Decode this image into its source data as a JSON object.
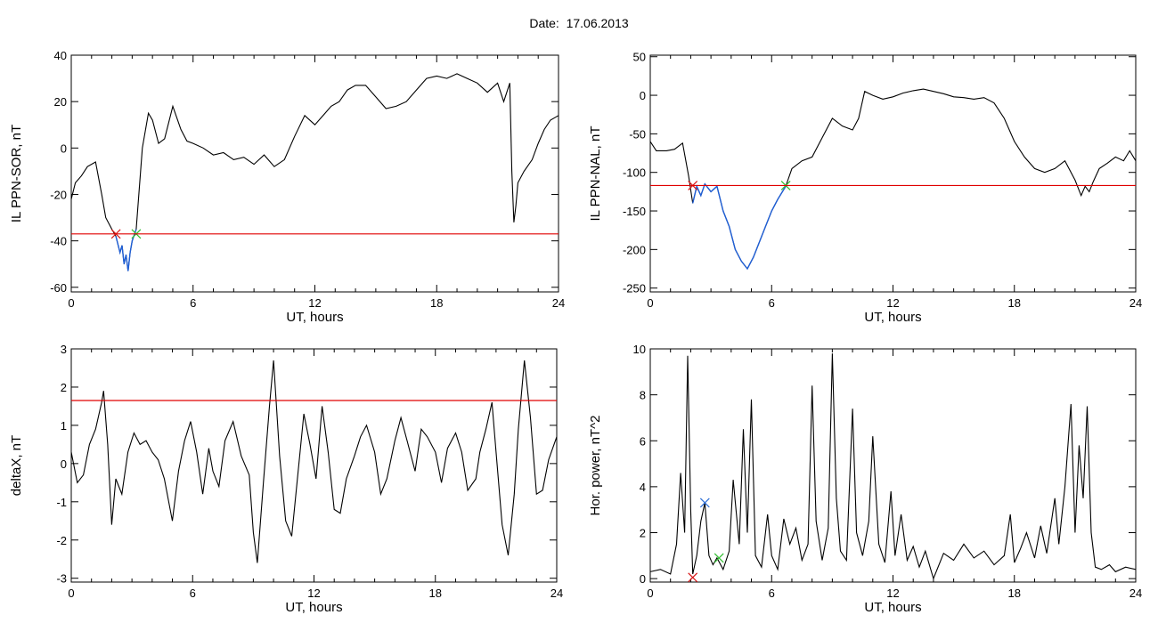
{
  "page": {
    "date_label": "Date:",
    "date_value": "17.06.2013"
  },
  "colors": {
    "line": "#000000",
    "highlight": "#1f5fd6",
    "threshold": "#e00000",
    "marker_red": "#d81818",
    "marker_green": "#2ebd2e",
    "marker_blue": "#2e6fd6"
  },
  "chart_data": [
    {
      "id": "sor",
      "type": "line",
      "title": "",
      "xlabel": "UT, hours",
      "ylabel": "IL PPN-SOR, nT",
      "xlim": [
        0,
        24
      ],
      "ylim": [
        -62,
        40
      ],
      "xticks": [
        0,
        6,
        12,
        18,
        24
      ],
      "xticklabels": [
        "0",
        "6",
        "12",
        "18",
        "24"
      ],
      "yticks": [
        -60,
        -40,
        -20,
        0,
        20,
        40
      ],
      "yticklabels": [
        "-60",
        "-40",
        "-20",
        "0",
        "20",
        "40"
      ],
      "threshold": -37,
      "highlight_range": [
        2.2,
        3.2
      ],
      "series": [
        {
          "x": [
            0,
            0.2,
            0.5,
            0.8,
            1.2,
            1.5,
            1.7,
            2.0,
            2.2,
            2.4,
            2.5,
            2.6,
            2.7,
            2.8,
            2.9,
            3.0,
            3.2,
            3.5,
            3.8,
            4.0,
            4.3,
            4.6,
            5.0,
            5.4,
            5.7,
            6.0,
            6.5,
            7.0,
            7.5,
            8.0,
            8.5,
            9.0,
            9.5,
            10.0,
            10.5,
            11.0,
            11.5,
            12.0,
            12.5,
            12.8,
            13.2,
            13.6,
            14.0,
            14.5,
            15.0,
            15.5,
            16.0,
            16.5,
            17.0,
            17.5,
            18.0,
            18.5,
            19.0,
            19.5,
            20.0,
            20.5,
            21.0,
            21.3,
            21.6,
            21.7,
            21.8,
            21.9,
            22.0,
            22.3,
            22.7,
            23.0,
            23.3,
            23.6,
            24.0
          ],
          "y": [
            -22,
            -15,
            -12,
            -8,
            -6,
            -20,
            -30,
            -35,
            -38,
            -45,
            -42,
            -50,
            -46,
            -53,
            -45,
            -40,
            -35,
            0,
            15,
            12,
            2,
            4,
            18,
            8,
            3,
            2,
            0,
            -3,
            -2,
            -5,
            -4,
            -7,
            -3,
            -8,
            -5,
            5,
            14,
            10,
            15,
            18,
            20,
            25,
            27,
            27,
            22,
            17,
            18,
            20,
            25,
            30,
            31,
            30,
            32,
            30,
            28,
            24,
            28,
            20,
            28,
            -10,
            -32,
            -25,
            -15,
            -10,
            -5,
            2,
            8,
            12,
            14
          ]
        }
      ]
    },
    {
      "id": "nal",
      "type": "line",
      "title": "",
      "xlabel": "UT, hours",
      "ylabel": "IL PPN-NAL, nT",
      "xlim": [
        0,
        24
      ],
      "ylim": [
        -255,
        52
      ],
      "xticks": [
        0,
        6,
        12,
        18,
        24
      ],
      "xticklabels": [
        "0",
        "6",
        "12",
        "18",
        "24"
      ],
      "yticks": [
        -250,
        -200,
        -150,
        -100,
        -50,
        0,
        50
      ],
      "yticklabels": [
        "-250",
        "-200",
        "-150",
        "-100",
        "-50",
        "0",
        "50"
      ],
      "threshold": -117,
      "highlight_range": [
        2.1,
        6.7
      ],
      "series": [
        {
          "x": [
            0,
            0.3,
            0.8,
            1.2,
            1.6,
            1.9,
            2.1,
            2.3,
            2.5,
            2.7,
            3.0,
            3.3,
            3.6,
            3.9,
            4.2,
            4.5,
            4.8,
            5.1,
            5.4,
            5.7,
            6.0,
            6.3,
            6.7,
            7.0,
            7.5,
            8.0,
            8.5,
            9.0,
            9.5,
            10.0,
            10.3,
            10.6,
            11.0,
            11.5,
            12.0,
            12.5,
            13.0,
            13.5,
            14.0,
            14.5,
            15.0,
            15.5,
            16.0,
            16.5,
            17.0,
            17.5,
            18.0,
            18.5,
            19.0,
            19.5,
            20.0,
            20.5,
            21.0,
            21.3,
            21.5,
            21.7,
            21.9,
            22.2,
            22.6,
            23.0,
            23.4,
            23.7,
            24.0
          ],
          "y": [
            -60,
            -72,
            -72,
            -70,
            -62,
            -105,
            -140,
            -118,
            -130,
            -115,
            -125,
            -118,
            -150,
            -170,
            -200,
            -215,
            -225,
            -210,
            -190,
            -170,
            -150,
            -135,
            -118,
            -95,
            -85,
            -80,
            -55,
            -30,
            -40,
            -45,
            -30,
            5,
            0,
            -5,
            -2,
            3,
            6,
            8,
            5,
            2,
            -2,
            -3,
            -5,
            -3,
            -10,
            -30,
            -60,
            -80,
            -95,
            -100,
            -95,
            -85,
            -110,
            -130,
            -118,
            -125,
            -112,
            -95,
            -88,
            -80,
            -85,
            -72,
            -85
          ]
        }
      ]
    },
    {
      "id": "deltax",
      "type": "line",
      "title": "",
      "xlabel": "UT, hours",
      "ylabel": "deltaX, nT",
      "xlim": [
        0,
        24
      ],
      "ylim": [
        -3.1,
        3
      ],
      "xticks": [
        0,
        6,
        12,
        18,
        24
      ],
      "xticklabels": [
        "0",
        "6",
        "12",
        "18",
        "24"
      ],
      "yticks": [
        -3,
        -2,
        -1,
        0,
        1,
        2,
        3
      ],
      "yticklabels": [
        "-3",
        "-2",
        "-1",
        "0",
        "1",
        "2",
        "3"
      ],
      "threshold": 1.65,
      "series": [
        {
          "x": [
            0,
            0.3,
            0.6,
            0.9,
            1.2,
            1.5,
            1.6,
            1.8,
            2.0,
            2.2,
            2.5,
            2.8,
            3.1,
            3.4,
            3.7,
            4.0,
            4.3,
            4.6,
            5.0,
            5.3,
            5.6,
            5.9,
            6.2,
            6.5,
            6.8,
            7.0,
            7.3,
            7.6,
            8.0,
            8.4,
            8.8,
            9.0,
            9.2,
            9.5,
            9.8,
            10.0,
            10.3,
            10.6,
            10.9,
            11.2,
            11.5,
            11.8,
            12.1,
            12.4,
            12.7,
            13.0,
            13.3,
            13.6,
            14.0,
            14.3,
            14.6,
            15.0,
            15.3,
            15.6,
            16.0,
            16.3,
            16.6,
            17.0,
            17.3,
            17.6,
            18.0,
            18.3,
            18.6,
            19.0,
            19.3,
            19.6,
            20.0,
            20.2,
            20.5,
            20.8,
            21.0,
            21.3,
            21.6,
            21.9,
            22.1,
            22.4,
            22.7,
            23.0,
            23.3,
            23.6,
            24.0
          ],
          "y": [
            0.3,
            -0.5,
            -0.3,
            0.5,
            0.9,
            1.6,
            1.9,
            0.5,
            -1.6,
            -0.4,
            -0.8,
            0.3,
            0.8,
            0.5,
            0.6,
            0.3,
            0.1,
            -0.4,
            -1.5,
            -0.2,
            0.6,
            1.1,
            0.3,
            -0.8,
            0.4,
            -0.2,
            -0.6,
            0.6,
            1.1,
            0.2,
            -0.3,
            -1.8,
            -2.6,
            -0.5,
            1.5,
            2.7,
            0.2,
            -1.5,
            -1.9,
            -0.3,
            1.3,
            0.5,
            -0.4,
            1.5,
            0.3,
            -1.2,
            -1.3,
            -0.4,
            0.2,
            0.7,
            1.0,
            0.3,
            -0.8,
            -0.4,
            0.6,
            1.2,
            0.6,
            -0.2,
            0.9,
            0.7,
            0.3,
            -0.5,
            0.4,
            0.8,
            0.3,
            -0.7,
            -0.4,
            0.3,
            0.9,
            1.6,
            0.3,
            -1.6,
            -2.4,
            -0.8,
            0.9,
            2.7,
            1.2,
            -0.8,
            -0.7,
            0.1,
            0.7
          ]
        }
      ]
    },
    {
      "id": "power",
      "type": "line",
      "title": "",
      "xlabel": "UT, hours",
      "ylabel": "Hor. power, nT^2",
      "xlim": [
        0,
        24
      ],
      "ylim": [
        -0.15,
        10
      ],
      "xticks": [
        0,
        6,
        12,
        18,
        24
      ],
      "xticklabels": [
        "0",
        "6",
        "12",
        "18",
        "24"
      ],
      "yticks": [
        0,
        2,
        4,
        6,
        8,
        10
      ],
      "yticklabels": [
        "0",
        "2",
        "4",
        "6",
        "8",
        "10"
      ],
      "markers": [
        {
          "x": 2.1,
          "y": 0.05,
          "color": "red"
        },
        {
          "x": 2.7,
          "y": 3.3,
          "color": "blue"
        },
        {
          "x": 3.4,
          "y": 0.9,
          "color": "green"
        }
      ],
      "series": [
        {
          "x": [
            0,
            0.5,
            1.0,
            1.3,
            1.5,
            1.7,
            1.85,
            2.0,
            2.1,
            2.3,
            2.5,
            2.7,
            2.9,
            3.1,
            3.3,
            3.6,
            3.9,
            4.1,
            4.4,
            4.6,
            4.8,
            5.0,
            5.2,
            5.5,
            5.8,
            6.0,
            6.3,
            6.6,
            6.9,
            7.2,
            7.5,
            7.8,
            8.0,
            8.2,
            8.5,
            8.8,
            9.0,
            9.2,
            9.4,
            9.7,
            10.0,
            10.2,
            10.5,
            10.8,
            11.0,
            11.3,
            11.6,
            11.9,
            12.1,
            12.4,
            12.7,
            13.0,
            13.3,
            13.6,
            14.0,
            14.5,
            15.0,
            15.5,
            16.0,
            16.5,
            17.0,
            17.5,
            17.8,
            18.0,
            18.3,
            18.6,
            19.0,
            19.3,
            19.6,
            20.0,
            20.2,
            20.5,
            20.8,
            21.0,
            21.2,
            21.4,
            21.6,
            21.8,
            22.0,
            22.3,
            22.7,
            23.0,
            23.5,
            24.0
          ],
          "y": [
            0.3,
            0.4,
            0.2,
            1.5,
            4.6,
            2.0,
            9.7,
            3.0,
            0.2,
            1.0,
            2.5,
            3.3,
            1.0,
            0.6,
            0.9,
            0.4,
            1.2,
            4.3,
            1.5,
            6.5,
            2.0,
            7.8,
            1.0,
            0.5,
            2.8,
            1.0,
            0.4,
            2.6,
            1.5,
            2.2,
            0.8,
            1.5,
            8.4,
            2.5,
            0.8,
            2.2,
            9.8,
            3.5,
            1.2,
            0.8,
            7.4,
            2.0,
            1.0,
            2.5,
            6.2,
            1.5,
            0.7,
            3.8,
            1.0,
            2.8,
            0.8,
            1.4,
            0.5,
            1.2,
            0.0,
            1.1,
            0.8,
            1.5,
            0.9,
            1.2,
            0.6,
            1.0,
            2.8,
            0.7,
            1.3,
            2.0,
            0.9,
            2.3,
            1.1,
            3.5,
            1.5,
            4.0,
            7.6,
            2.0,
            5.8,
            3.5,
            7.5,
            2.0,
            0.5,
            0.4,
            0.6,
            0.3,
            0.5,
            0.4
          ]
        }
      ]
    }
  ]
}
